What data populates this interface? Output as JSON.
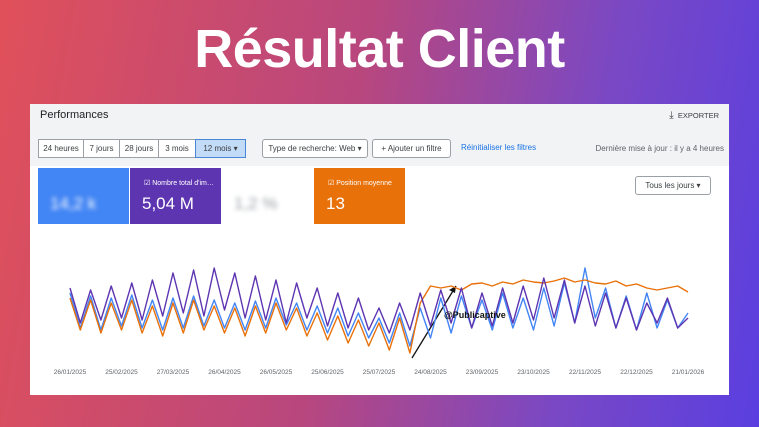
{
  "header": {
    "title": "Résultat Client"
  },
  "panel": {
    "title": "Performances",
    "export": "EXPORTER",
    "ranges": [
      "24 heures",
      "7 jours",
      "28 jours",
      "3 mois",
      "12 mois"
    ],
    "search_type": "Type de recherche: Web",
    "add_filter": "Ajouter un filtre",
    "reset": "Réinitialiser les filtres",
    "updated": "Dernière mise à jour : il y a 4 heures",
    "granularity": "Tous les jours"
  },
  "cards": [
    {
      "value": "14,2 k"
    },
    {
      "label": "Nombre total d'im…",
      "value": "5,04 M"
    },
    {
      "value": "1,2 %"
    },
    {
      "label": "Position moyenne",
      "value": "13"
    }
  ],
  "chart_data": {
    "type": "line",
    "categories": [
      "26/01/2025",
      null,
      null,
      null,
      null,
      "25/02/2025",
      null,
      null,
      null,
      null,
      "27/03/2025",
      null,
      null,
      null,
      null,
      "26/04/2025",
      null,
      null,
      null,
      null,
      "26/05/2025",
      null,
      null,
      null,
      null,
      "25/06/2025",
      null,
      null,
      null,
      null,
      "25/07/2025",
      null,
      null,
      null,
      null,
      "24/08/2025",
      null,
      null,
      null,
      null,
      "23/09/2025",
      null,
      null,
      null,
      null,
      "23/10/2025",
      null,
      null,
      null,
      null,
      "22/11/2025",
      null,
      null,
      null,
      null,
      "22/12/2025",
      null,
      null,
      null,
      null,
      "21/01/2026"
    ],
    "ylim": [
      0,
      100
    ],
    "annotation": "@Publicaptive",
    "series": [
      {
        "color": "#4285f4",
        "values": [
          65,
          30,
          62,
          28,
          60,
          32,
          63,
          30,
          58,
          28,
          60,
          30,
          62,
          32,
          58,
          30,
          55,
          28,
          57,
          30,
          60,
          33,
          55,
          28,
          52,
          25,
          50,
          22,
          45,
          20,
          40,
          15,
          45,
          12,
          50,
          20,
          60,
          25,
          62,
          30,
          58,
          28,
          65,
          30,
          60,
          28,
          70,
          32,
          75,
          35,
          90,
          40,
          70,
          30,
          62,
          28,
          65,
          30,
          58,
          30,
          45
        ]
      },
      {
        "color": "#e8710a",
        "values": [
          60,
          28,
          58,
          25,
          55,
          28,
          58,
          25,
          52,
          22,
          55,
          25,
          58,
          28,
          52,
          25,
          50,
          22,
          52,
          25,
          55,
          28,
          50,
          22,
          45,
          18,
          42,
          15,
          38,
          12,
          35,
          8,
          40,
          5,
          55,
          72,
          70,
          72,
          68,
          74,
          75,
          72,
          76,
          74,
          78,
          76,
          75,
          77,
          80,
          76,
          78,
          75,
          74,
          77,
          72,
          74,
          70,
          68,
          70,
          72,
          66
        ]
      },
      {
        "color": "#5e35b1",
        "values": [
          70,
          35,
          68,
          38,
          72,
          40,
          75,
          38,
          78,
          42,
          85,
          45,
          88,
          42,
          90,
          48,
          85,
          40,
          82,
          38,
          78,
          35,
          75,
          40,
          70,
          32,
          65,
          30,
          60,
          28,
          50,
          25,
          55,
          28,
          65,
          32,
          68,
          35,
          70,
          30,
          65,
          32,
          70,
          35,
          72,
          38,
          80,
          40,
          78,
          35,
          72,
          32,
          65,
          30,
          60,
          28,
          55,
          35,
          60,
          30,
          40
        ]
      }
    ]
  }
}
